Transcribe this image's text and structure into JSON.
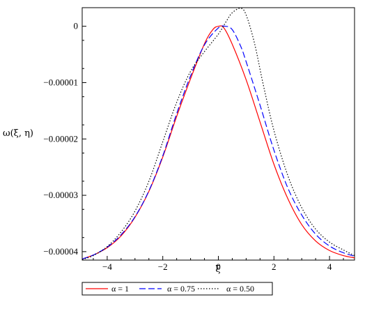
{
  "chart_data": {
    "type": "line",
    "xlabel": "ξ",
    "ylabel": "ω(ξ, η)",
    "xlim": [
      -4.9,
      4.9
    ],
    "ylim": [
      -4.15e-05,
      3.3e-06
    ],
    "x_ticks": [
      {
        "value": -4,
        "label": "−4"
      },
      {
        "value": -2,
        "label": "−2"
      },
      {
        "value": 0,
        "label": "0"
      },
      {
        "value": 2,
        "label": "2"
      },
      {
        "value": 4,
        "label": "4"
      }
    ],
    "y_ticks": [
      {
        "value": 0,
        "label": "0"
      },
      {
        "value": -1e-05,
        "label": "−0.00001"
      },
      {
        "value": -2e-05,
        "label": "−0.00002"
      },
      {
        "value": -3e-05,
        "label": "−0.00003"
      },
      {
        "value": -4e-05,
        "label": "−0.00004"
      }
    ],
    "legend_position": "bottom",
    "series": [
      {
        "name": "α = 1",
        "color": "#ff0000",
        "dash": "solid",
        "x": [
          -4.9,
          -4.5,
          -4.0,
          -3.5,
          -3.0,
          -2.5,
          -2.0,
          -1.5,
          -1.0,
          -0.5,
          -0.2,
          0.0,
          0.2,
          0.5,
          1.0,
          1.5,
          2.0,
          2.5,
          3.0,
          3.5,
          4.0,
          4.5,
          4.9
        ],
        "y": [
          -4.13e-05,
          -4.06e-05,
          -3.93e-05,
          -3.72e-05,
          -3.39e-05,
          -2.93e-05,
          -2.32e-05,
          -1.6e-05,
          -9.3e-06,
          -3.1e-06,
          -6e-07,
          0.0,
          -3e-07,
          -3.2e-06,
          -9.5e-06,
          -1.7e-05,
          -2.45e-05,
          -3.06e-05,
          -3.52e-05,
          -3.81e-05,
          -3.98e-05,
          -4.07e-05,
          -4.11e-05
        ]
      },
      {
        "name": "α = 0.75",
        "color": "#0000ff",
        "dash": "long-dash",
        "x": [
          -4.9,
          -4.5,
          -4.0,
          -3.5,
          -3.0,
          -2.5,
          -2.0,
          -1.5,
          -1.0,
          -0.5,
          0.0,
          0.25,
          0.5,
          0.8,
          1.0,
          1.5,
          2.0,
          2.5,
          3.0,
          3.5,
          4.0,
          4.5,
          4.9
        ],
        "y": [
          -4.13e-05,
          -4.06e-05,
          -3.92e-05,
          -3.7e-05,
          -3.38e-05,
          -2.92e-05,
          -2.3e-05,
          -1.55e-05,
          -8.8e-06,
          -3.3e-06,
          -3e-07,
          0.0,
          -6e-07,
          -3.5e-06,
          -6.3e-06,
          -1.4e-05,
          -2.2e-05,
          -2.87e-05,
          -3.35e-05,
          -3.69e-05,
          -3.9e-05,
          -4.02e-05,
          -4.08e-05
        ]
      },
      {
        "name": "α = 0.50",
        "color": "#000000",
        "dash": "dotted",
        "x": [
          -4.9,
          -4.5,
          -4.0,
          -3.5,
          -3.0,
          -2.5,
          -2.0,
          -1.5,
          -1.0,
          -0.5,
          0.0,
          0.3,
          0.5,
          0.8,
          1.0,
          1.3,
          1.6,
          2.0,
          2.5,
          3.0,
          3.5,
          4.0,
          4.5,
          4.9
        ],
        "y": [
          -4.14e-05,
          -4.07e-05,
          -3.91e-05,
          -3.65e-05,
          -3.28e-05,
          -2.75e-05,
          -2.05e-05,
          -1.35e-05,
          -8e-06,
          -4.5e-06,
          -1.4e-06,
          1e-06,
          2.4e-06,
          3.2e-06,
          2e-06,
          -3e-06,
          -1e-05,
          -1.85e-05,
          -2.65e-05,
          -3.22e-05,
          -3.6e-05,
          -3.83e-05,
          -3.97e-05,
          -4.07e-05
        ]
      }
    ]
  }
}
